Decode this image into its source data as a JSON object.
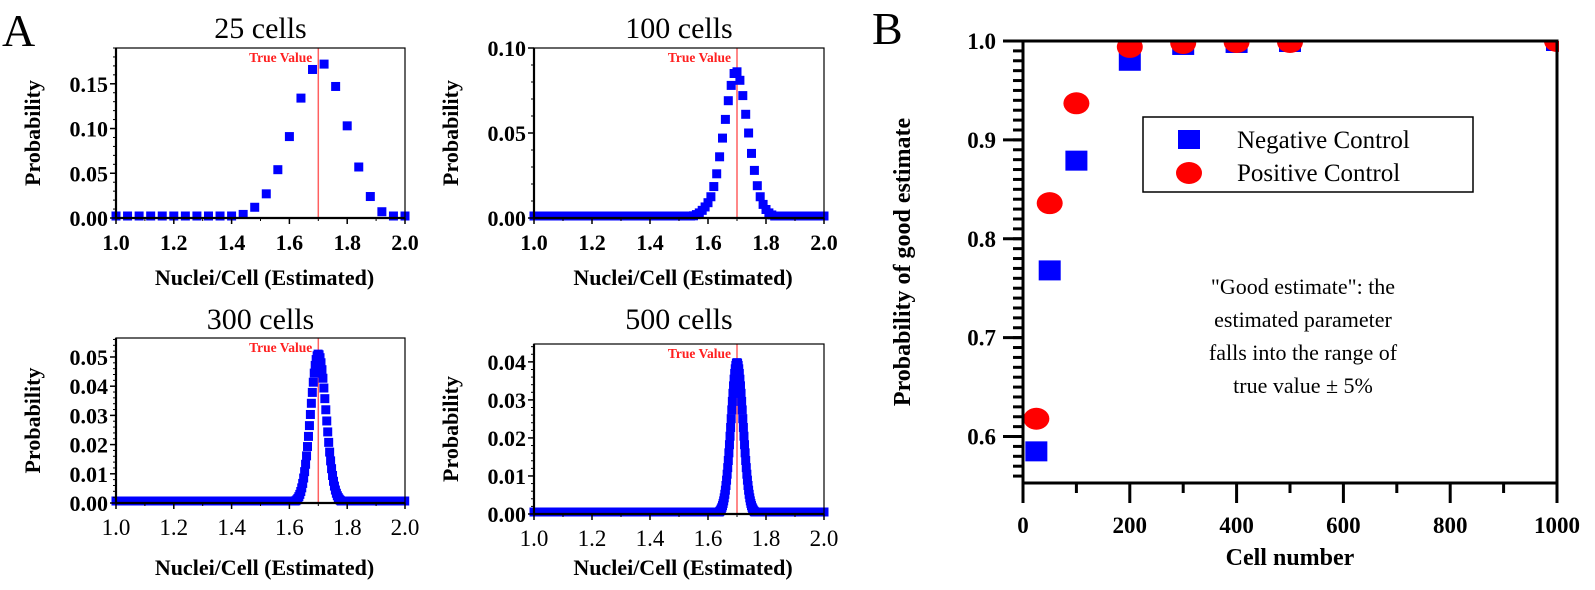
{
  "figure": {
    "panel_a_letter": "A",
    "panel_b_letter": "B"
  },
  "colors": {
    "marker_blue": "#0000ff",
    "marker_red": "#ff0000",
    "true_line": "#ff6060",
    "true_label": "#ff2020"
  },
  "chart_data": [
    {
      "id": "a1",
      "type": "scatter",
      "title": "25 cells",
      "xlabel": "Nuclei/Cell (Estimated)",
      "ylabel": "Probability",
      "xlim": [
        1.0,
        2.0
      ],
      "ylim": [
        0,
        0.19
      ],
      "xticks": [
        "1.0",
        "1.2",
        "1.4",
        "1.6",
        "1.8",
        "2.0"
      ],
      "yticks": [
        "0.00",
        "0.05",
        "0.10",
        "0.15"
      ],
      "ytick_values": [
        0,
        0.05,
        0.1,
        0.15
      ],
      "xtick_weight": "bold",
      "true_value": 1.7,
      "true_value_label": "True Value",
      "x": [
        1.0,
        1.04,
        1.08,
        1.12,
        1.16,
        1.2,
        1.24,
        1.28,
        1.32,
        1.36,
        1.4,
        1.44,
        1.48,
        1.52,
        1.56,
        1.6,
        1.64,
        1.68,
        1.72,
        1.76,
        1.8,
        1.84,
        1.88,
        1.92,
        1.96,
        2.0
      ],
      "y": [
        0,
        0,
        0,
        0,
        0,
        0,
        0,
        0,
        0,
        0.0005,
        0.001,
        0.004,
        0.012,
        0.027,
        0.054,
        0.091,
        0.134,
        0.166,
        0.172,
        0.147,
        0.103,
        0.057,
        0.024,
        0.007,
        0.002,
        0.0005
      ]
    },
    {
      "id": "a2",
      "type": "scatter",
      "title": "100 cells",
      "xlabel": "Nuclei/Cell (Estimated)",
      "ylabel": "Probability",
      "xlim": [
        1.0,
        2.0
      ],
      "ylim": [
        0,
        0.1
      ],
      "xticks": [
        "1.0",
        "1.2",
        "1.4",
        "1.6",
        "1.8",
        "2.0"
      ],
      "yticks": [
        "0.00",
        "0.05",
        "0.10"
      ],
      "ytick_values": [
        0,
        0.05,
        0.1
      ],
      "xtick_weight": "bold",
      "true_value": 1.7,
      "true_value_label": "True Value",
      "x_start": 1.0,
      "x_step": 0.01,
      "x_count": 101,
      "y": [
        0,
        0,
        0,
        0,
        0,
        0,
        0,
        0,
        0,
        0,
        0,
        0,
        0,
        0,
        0,
        0,
        0,
        0,
        0,
        0,
        0,
        0,
        0,
        0,
        0,
        0,
        0,
        0,
        0,
        0,
        0,
        0,
        0,
        0,
        0,
        0,
        0,
        0,
        0,
        0,
        0,
        0,
        0,
        0,
        0,
        0,
        0,
        0,
        0,
        0,
        0.0001,
        0.0002,
        0.0003,
        0.0005,
        0.0008,
        0.0013,
        0.002,
        0.003,
        0.0045,
        0.0065,
        0.009,
        0.0125,
        0.0185,
        0.026,
        0.036,
        0.047,
        0.058,
        0.069,
        0.078,
        0.085,
        0.086,
        0.081,
        0.072,
        0.061,
        0.05,
        0.038,
        0.028,
        0.019,
        0.0125,
        0.008,
        0.005,
        0.003,
        0.0018,
        0.001,
        0.0006,
        0.0003,
        0.0002,
        0.0001,
        0,
        0,
        0,
        0,
        0,
        0,
        0,
        0,
        0,
        0,
        0,
        0,
        0
      ]
    },
    {
      "id": "a3",
      "type": "scatter",
      "title": "300 cells",
      "xlabel": "Nuclei/Cell (Estimated)",
      "ylabel": "Probability",
      "xlim": [
        1.0,
        2.0
      ],
      "ylim": [
        0,
        0.0565
      ],
      "xticks": [
        "1.0",
        "1.2",
        "1.4",
        "1.6",
        "1.8",
        "2.0"
      ],
      "yticks": [
        "0.00",
        "0.01",
        "0.02",
        "0.03",
        "0.04",
        "0.05"
      ],
      "ytick_values": [
        0,
        0.01,
        0.02,
        0.03,
        0.04,
        0.05
      ],
      "xtick_weight": "normal",
      "true_value": 1.7,
      "true_value_label": "True Value",
      "distribution": {
        "model": "gaussian",
        "center": 1.7,
        "sd": 0.0268,
        "peak": 0.051,
        "x_step": 0.00333,
        "x_range": [
          1.0,
          2.0
        ]
      }
    },
    {
      "id": "a4",
      "type": "scatter",
      "title": "500 cells",
      "xlabel": "Nuclei/Cell (Estimated)",
      "ylabel": "Probability",
      "xlim": [
        1.0,
        2.0
      ],
      "ylim": [
        0,
        0.0447
      ],
      "xticks": [
        "1.0",
        "1.2",
        "1.4",
        "1.6",
        "1.8",
        "2.0"
      ],
      "yticks": [
        "0.00",
        "0.01",
        "0.02",
        "0.03",
        "0.04"
      ],
      "ytick_values": [
        0,
        0.01,
        0.02,
        0.03,
        0.04
      ],
      "xtick_weight": "normal",
      "true_value": 1.7,
      "true_value_label": "True Value",
      "distribution": {
        "model": "gaussian",
        "center": 1.7,
        "sd": 0.0208,
        "peak": 0.0398,
        "x_step": 0.002,
        "x_range": [
          1.0,
          2.0
        ]
      }
    },
    {
      "id": "b",
      "type": "scatter",
      "title": "",
      "xlabel": "Cell number",
      "ylabel": "Probability of good estimate",
      "xlim": [
        0,
        1000
      ],
      "ylim": [
        0.553,
        1.0
      ],
      "xticks": [
        "0",
        "200",
        "400",
        "600",
        "800",
        "1000"
      ],
      "xtick_values": [
        0,
        200,
        400,
        600,
        800,
        1000
      ],
      "yticks": [
        "0.6",
        "0.7",
        "0.8",
        "0.9",
        "1.0"
      ],
      "ytick_values": [
        0.6,
        0.7,
        0.8,
        0.9,
        1.0
      ],
      "legend_position": "upper-right",
      "series": [
        {
          "name": "Negative Control",
          "marker": "square",
          "color": "#0000ff",
          "x": [
            25,
            50,
            100,
            200,
            300,
            400,
            500,
            1000
          ],
          "y": [
            0.585,
            0.768,
            0.879,
            0.98,
            0.996,
            0.998,
            0.999,
            1.0
          ]
        },
        {
          "name": "Positive Control",
          "marker": "circle",
          "color": "#ff0000",
          "x": [
            25,
            50,
            100,
            200,
            300,
            400,
            500,
            1000
          ],
          "y": [
            0.618,
            0.836,
            0.937,
            0.994,
            0.998,
            0.999,
            0.999,
            1.0
          ]
        }
      ],
      "annotation": [
        "\"Good estimate\": the",
        "estimated parameter",
        "falls into the range of",
        "true value ± 5%"
      ]
    }
  ]
}
